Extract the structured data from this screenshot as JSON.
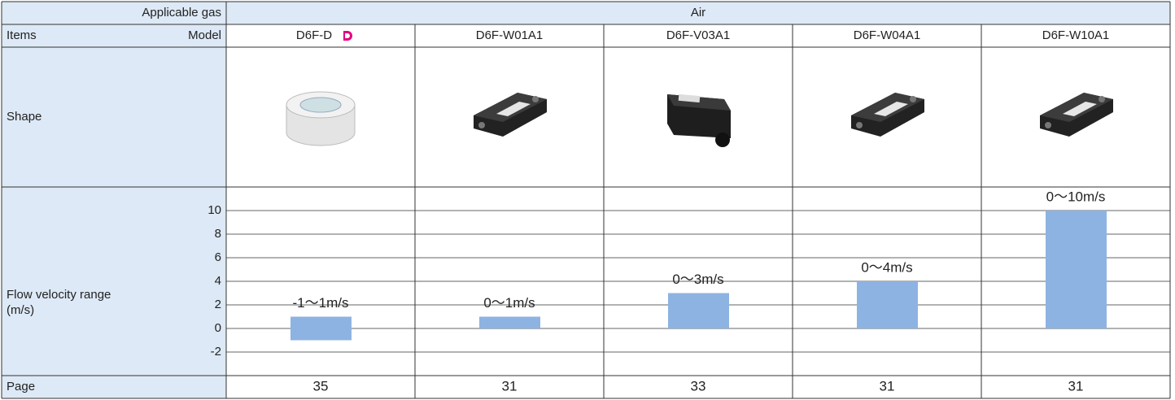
{
  "table": {
    "gas_label": "Applicable gas",
    "gas": "Air",
    "items_label": "Items",
    "model_label": "Model",
    "models": [
      "D6F-D",
      "D6F-W01A1",
      "D6F-V03A1",
      "D6F-W04A1",
      "D6F-W10A1"
    ],
    "shape_label": "Shape",
    "flow_label": [
      "Flow velocity range",
      "(m/s)"
    ],
    "page_label": "Page",
    "pages": [
      35,
      31,
      33,
      31,
      31
    ]
  },
  "chart_data": {
    "type": "range-bar",
    "values": [
      [
        -1,
        1
      ],
      [
        0,
        1
      ],
      [
        0,
        3
      ],
      [
        0,
        4
      ],
      [
        0,
        10
      ]
    ],
    "value_labels": [
      "-1～1m/s",
      "0～1m/s",
      "0～3m/s",
      "0～4m/s",
      "0～10m/s"
    ],
    "color": "#8db3e2",
    "ylim": [
      -4,
      12
    ],
    "yticks": [
      -2,
      0,
      2,
      4,
      6,
      8,
      10
    ],
    "grid": true
  }
}
